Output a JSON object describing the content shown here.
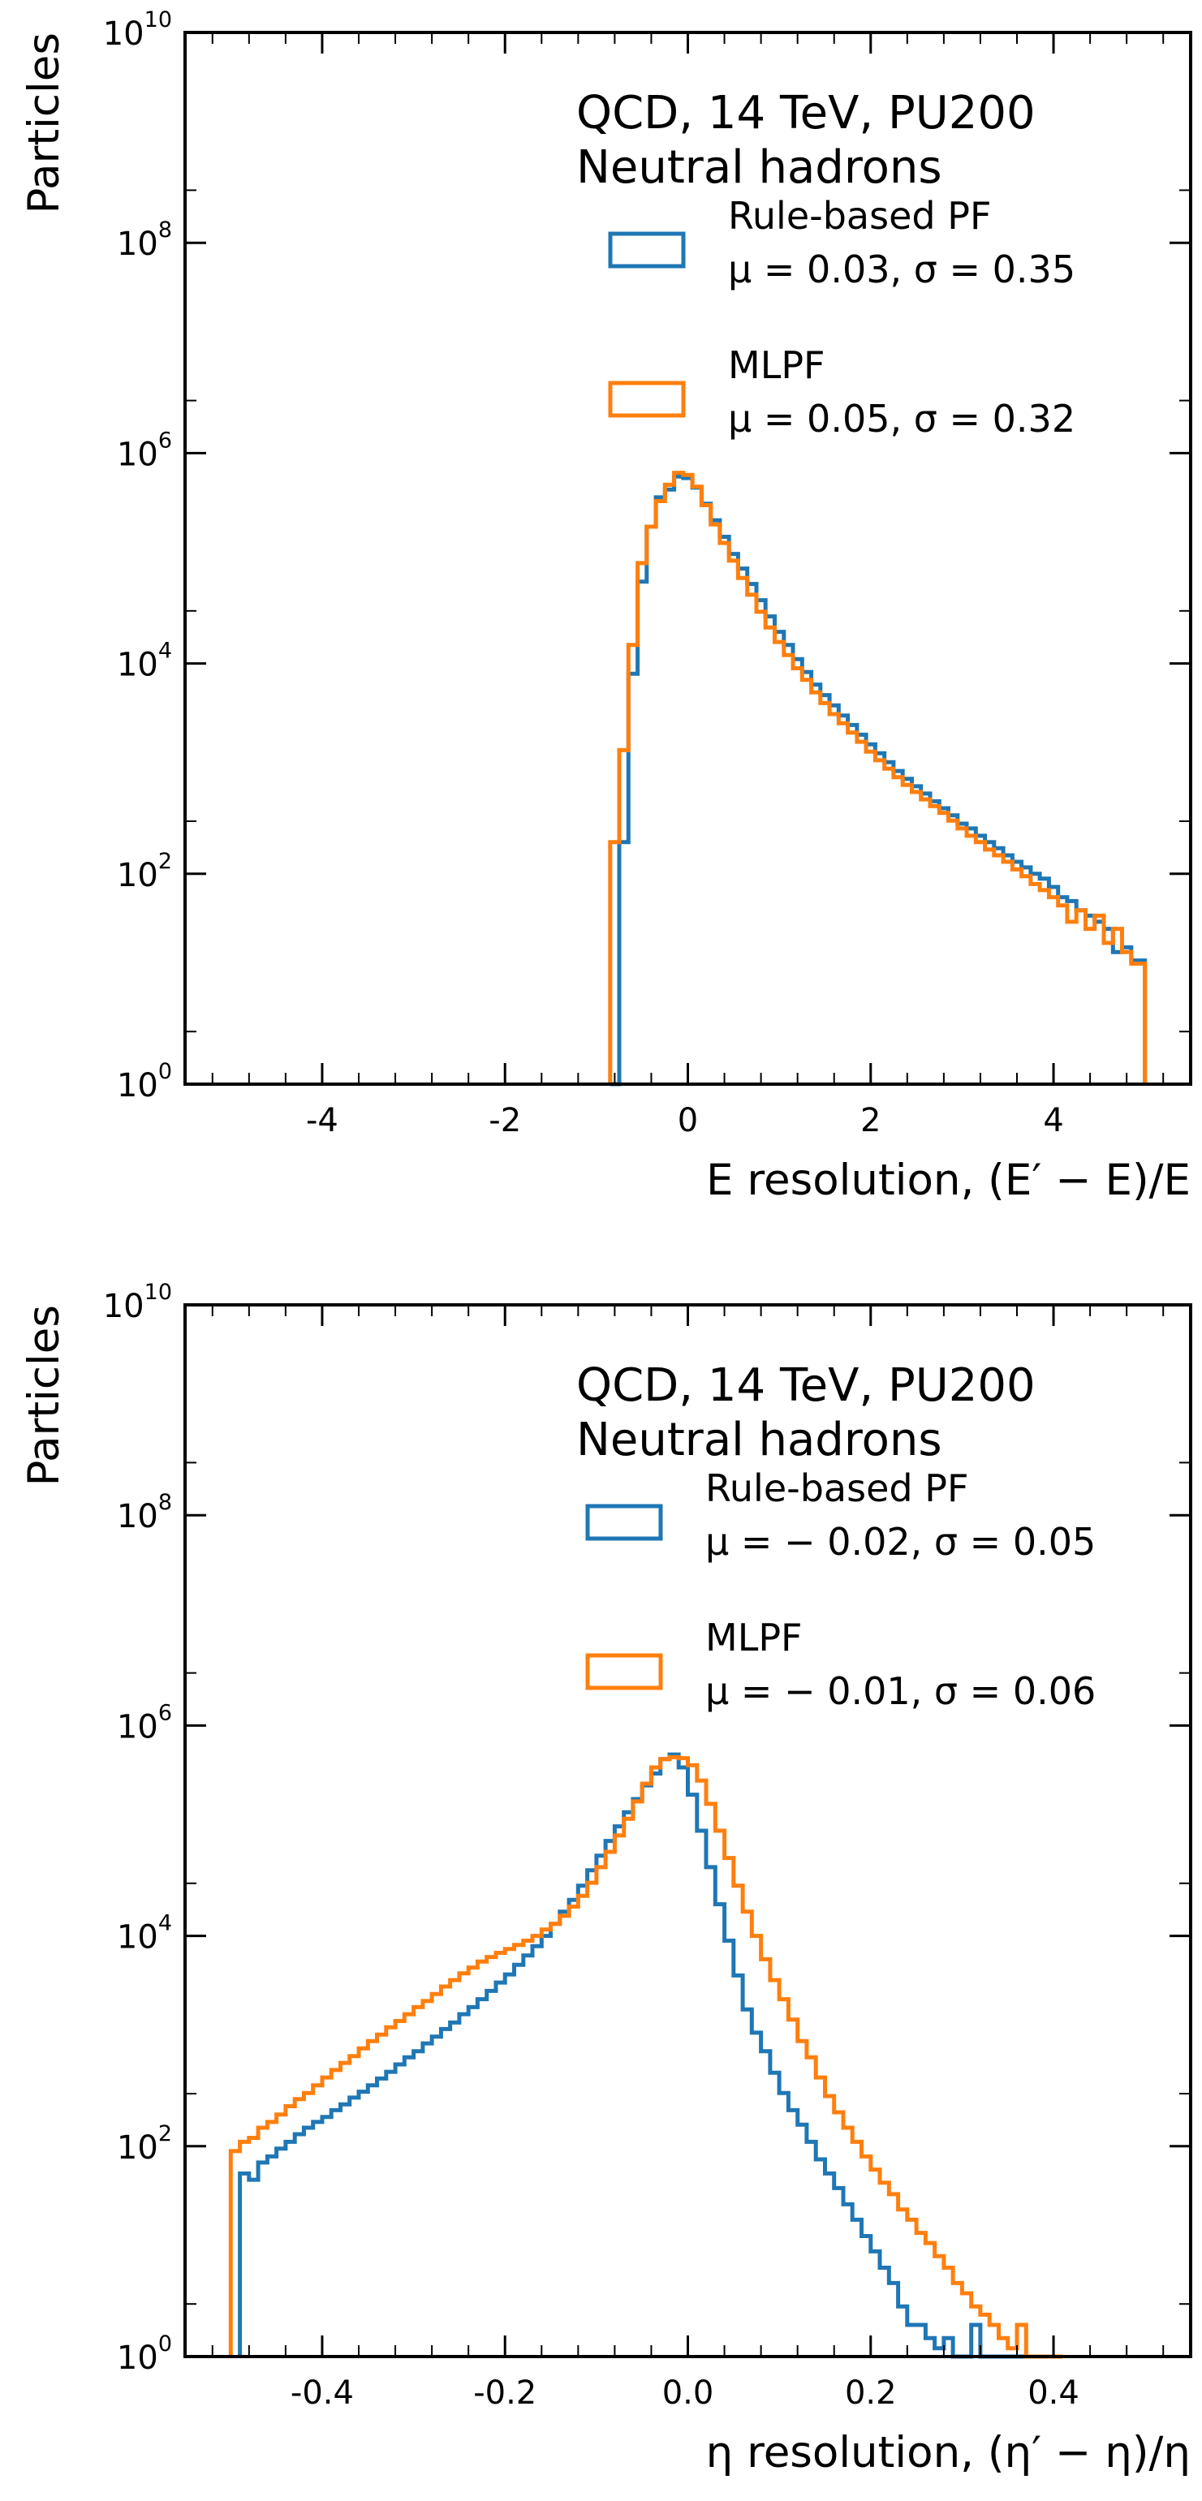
{
  "chart_data": [
    {
      "type": "histogram",
      "yscale": "log",
      "ylabel": "Particles",
      "xlabel": "E resolution, (E′ − E)/E",
      "xlim": [
        -5.5,
        5.5
      ],
      "ylim": [
        1,
        10000000000
      ],
      "x_ticks": [
        -4,
        -2,
        0,
        2,
        4
      ],
      "x_tick_labels": [
        "-4",
        "-2",
        "0",
        "2",
        "4"
      ],
      "y_ticks": [
        1,
        100,
        10000,
        1000000,
        100000000,
        10000000000
      ],
      "annotation": [
        "QCD, 14 TeV, PU200",
        "Neutral hadrons"
      ],
      "grid": false,
      "legend_position": "top-right",
      "series": [
        {
          "name": "Rule-based PF",
          "stats": "μ = 0.03,  σ = 0.35",
          "color": "#1f77b4",
          "edges": [
            -0.85,
            -0.75,
            -0.65,
            -0.55,
            -0.45,
            -0.35,
            -0.25,
            -0.15,
            -0.05,
            0.05,
            0.15,
            0.25,
            0.35,
            0.45,
            0.55,
            0.65,
            0.75,
            0.85,
            0.95,
            1.05,
            1.15,
            1.25,
            1.35,
            1.45,
            1.55,
            1.65,
            1.75,
            1.85,
            1.95,
            2.05,
            2.15,
            2.25,
            2.35,
            2.45,
            2.55,
            2.65,
            2.75,
            2.85,
            2.95,
            3.05,
            3.15,
            3.25,
            3.35,
            3.45,
            3.55,
            3.65,
            3.75,
            3.85,
            3.95,
            4.05,
            4.15,
            4.25,
            4.35,
            4.45,
            4.55,
            4.65,
            4.75,
            4.85,
            5.0
          ],
          "counts": [
            1,
            200,
            8000,
            60000,
            200000,
            380000,
            450000,
            600000,
            580000,
            470000,
            330000,
            230000,
            160000,
            110000,
            80000,
            57000,
            40000,
            28000,
            20000,
            15000,
            11000,
            8300,
            6300,
            5000,
            4000,
            3200,
            2600,
            2100,
            1700,
            1400,
            1150,
            950,
            800,
            680,
            580,
            490,
            420,
            360,
            300,
            270,
            230,
            200,
            175,
            150,
            130,
            115,
            100,
            90,
            75,
            60,
            55,
            45,
            40,
            35,
            30,
            18,
            20,
            15
          ]
        },
        {
          "name": "MLPF",
          "stats": "μ = 0.05,  σ = 0.32",
          "color": "#ff7f0e",
          "edges": [
            -0.85,
            -0.75,
            -0.65,
            -0.55,
            -0.45,
            -0.35,
            -0.25,
            -0.15,
            -0.05,
            0.05,
            0.15,
            0.25,
            0.35,
            0.45,
            0.55,
            0.65,
            0.75,
            0.85,
            0.95,
            1.05,
            1.15,
            1.25,
            1.35,
            1.45,
            1.55,
            1.65,
            1.75,
            1.85,
            1.95,
            2.05,
            2.15,
            2.25,
            2.35,
            2.45,
            2.55,
            2.65,
            2.75,
            2.85,
            2.95,
            3.05,
            3.15,
            3.25,
            3.35,
            3.45,
            3.55,
            3.65,
            3.75,
            3.85,
            3.95,
            4.05,
            4.15,
            4.25,
            4.35,
            4.45,
            4.55,
            4.65,
            4.75,
            4.85,
            5.0
          ],
          "counts": [
            200,
            1500,
            15000,
            90000,
            200000,
            350000,
            500000,
            650000,
            620000,
            480000,
            320000,
            210000,
            140000,
            95000,
            65000,
            45000,
            31000,
            22000,
            16000,
            12000,
            9000,
            7000,
            5300,
            4200,
            3300,
            2700,
            2200,
            1800,
            1450,
            1200,
            1000,
            830,
            700,
            600,
            510,
            440,
            380,
            320,
            270,
            230,
            200,
            170,
            150,
            130,
            110,
            95,
            80,
            70,
            60,
            50,
            35,
            45,
            30,
            40,
            22,
            30,
            18,
            14
          ]
        }
      ]
    },
    {
      "type": "histogram",
      "yscale": "log",
      "ylabel": "Particles",
      "xlabel": "η resolution, (η′ − η)/η",
      "xlim": [
        -0.55,
        0.55
      ],
      "ylim": [
        1,
        10000000000
      ],
      "x_ticks": [
        -0.4,
        -0.2,
        0.0,
        0.2,
        0.4
      ],
      "x_tick_labels": [
        "-0.4",
        "-0.2",
        "0.0",
        "0.2",
        "0.4"
      ],
      "y_ticks": [
        1,
        100,
        10000,
        1000000,
        100000000,
        10000000000
      ],
      "annotation": [
        "QCD, 14 TeV, PU200",
        "Neutral hadrons"
      ],
      "grid": false,
      "legend_position": "top-right",
      "series": [
        {
          "name": "Rule-based PF",
          "stats": "μ = − 0.02,  σ = 0.05",
          "color": "#1f77b4",
          "edges": [
            -0.49,
            -0.48,
            -0.47,
            -0.46,
            -0.45,
            -0.44,
            -0.43,
            -0.42,
            -0.41,
            -0.4,
            -0.39,
            -0.38,
            -0.37,
            -0.36,
            -0.35,
            -0.34,
            -0.33,
            -0.32,
            -0.31,
            -0.3,
            -0.29,
            -0.28,
            -0.27,
            -0.26,
            -0.25,
            -0.24,
            -0.23,
            -0.22,
            -0.21,
            -0.2,
            -0.19,
            -0.18,
            -0.17,
            -0.16,
            -0.15,
            -0.14,
            -0.13,
            -0.12,
            -0.11,
            -0.1,
            -0.09,
            -0.08,
            -0.07,
            -0.06,
            -0.05,
            -0.04,
            -0.03,
            -0.02,
            -0.01,
            0.0,
            0.01,
            0.02,
            0.03,
            0.04,
            0.05,
            0.06,
            0.07,
            0.08,
            0.09,
            0.1,
            0.11,
            0.12,
            0.13,
            0.14,
            0.15,
            0.16,
            0.17,
            0.18,
            0.19,
            0.2,
            0.21,
            0.22,
            0.23,
            0.24,
            0.25,
            0.26,
            0.27,
            0.28,
            0.29,
            0.3,
            0.31,
            0.32,
            0.33,
            0.34,
            0.35,
            0.36,
            0.37
          ],
          "counts": [
            55,
            48,
            70,
            80,
            95,
            110,
            130,
            150,
            170,
            190,
            220,
            250,
            290,
            330,
            380,
            440,
            510,
            600,
            700,
            800,
            950,
            1100,
            1300,
            1500,
            1800,
            2100,
            2500,
            3000,
            3600,
            4300,
            5300,
            6500,
            8000,
            10000,
            13000,
            17000,
            22000,
            30000,
            42000,
            58000,
            80000,
            110000,
            150000,
            200000,
            270000,
            350000,
            480000,
            530000,
            400000,
            220000,
            100000,
            45000,
            20000,
            9000,
            4200,
            2000,
            1200,
            800,
            500,
            320,
            220,
            160,
            110,
            75,
            55,
            40,
            28,
            20,
            14,
            10,
            7,
            5,
            3,
            2,
            2,
            1.5,
            1.2,
            1.5,
            1,
            1,
            2,
            1,
            1,
            1,
            1,
            1
          ]
        },
        {
          "name": "MLPF",
          "stats": "μ = − 0.01,  σ = 0.06",
          "color": "#ff7f0e",
          "edges": [
            -0.5,
            -0.49,
            -0.48,
            -0.47,
            -0.46,
            -0.45,
            -0.44,
            -0.43,
            -0.42,
            -0.41,
            -0.4,
            -0.39,
            -0.38,
            -0.37,
            -0.36,
            -0.35,
            -0.34,
            -0.33,
            -0.32,
            -0.31,
            -0.3,
            -0.29,
            -0.28,
            -0.27,
            -0.26,
            -0.25,
            -0.24,
            -0.23,
            -0.22,
            -0.21,
            -0.2,
            -0.19,
            -0.18,
            -0.17,
            -0.16,
            -0.15,
            -0.14,
            -0.13,
            -0.12,
            -0.11,
            -0.1,
            -0.09,
            -0.08,
            -0.07,
            -0.06,
            -0.05,
            -0.04,
            -0.03,
            -0.02,
            -0.01,
            0.0,
            0.01,
            0.02,
            0.03,
            0.04,
            0.05,
            0.06,
            0.07,
            0.08,
            0.09,
            0.1,
            0.11,
            0.12,
            0.13,
            0.14,
            0.15,
            0.16,
            0.17,
            0.18,
            0.19,
            0.2,
            0.21,
            0.22,
            0.23,
            0.24,
            0.25,
            0.26,
            0.27,
            0.28,
            0.29,
            0.3,
            0.31,
            0.32,
            0.33,
            0.34,
            0.35,
            0.36,
            0.37,
            0.38,
            0.39,
            0.4,
            0.41
          ],
          "counts": [
            90,
            110,
            120,
            150,
            170,
            200,
            240,
            280,
            320,
            380,
            450,
            530,
            620,
            720,
            850,
            1000,
            1150,
            1350,
            1550,
            1800,
            2100,
            2400,
            2800,
            3300,
            3800,
            4400,
            5000,
            5700,
            6300,
            6900,
            7500,
            8200,
            9000,
            10000,
            11500,
            13000,
            15500,
            19000,
            24000,
            32000,
            45000,
            63000,
            90000,
            130000,
            190000,
            280000,
            400000,
            480000,
            500000,
            490000,
            420000,
            300000,
            180000,
            100000,
            55000,
            30000,
            17000,
            10000,
            6000,
            3800,
            2500,
            1600,
            1000,
            700,
            450,
            300,
            210,
            150,
            110,
            80,
            60,
            45,
            35,
            25,
            20,
            15,
            12,
            9,
            7,
            5,
            4,
            3,
            2.5,
            2,
            1.5,
            1.2,
            2,
            1,
            1,
            1,
            1
          ]
        }
      ]
    }
  ]
}
